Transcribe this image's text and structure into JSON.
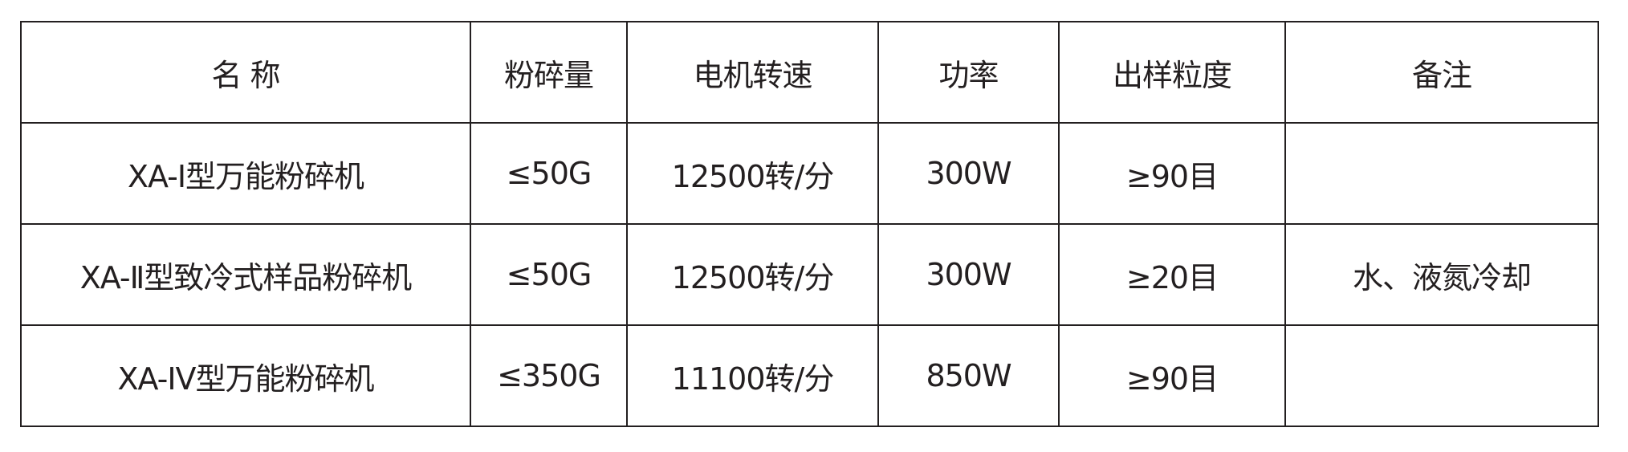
{
  "table": {
    "headers": [
      "名 称",
      "粉碎量",
      "电机转速",
      "功率",
      "出样粒度",
      "备注"
    ],
    "rows": [
      [
        "XA-Ⅰ型万能粉碎机",
        "≤50G",
        "12500转/分",
        "300W",
        "≥90目",
        ""
      ],
      [
        "XA-Ⅱ型致冷式样品粉碎机",
        "≤50G",
        "12500转/分",
        "300W",
        "≥20目",
        "水、液氮冷却"
      ],
      [
        "XA-IV型万能粉碎机",
        "≤350G",
        "11100转/分",
        "850W",
        "≥90目",
        ""
      ]
    ]
  }
}
